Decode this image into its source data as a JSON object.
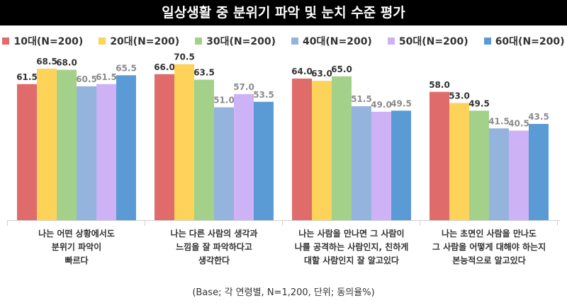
{
  "header": {
    "title": "일상생활 중 분위기 파악 및 눈치 수준 평가"
  },
  "footnote": "(Base; 각 연령별, N=1,200, 단위; 동의율%)",
  "chart_data": {
    "type": "bar",
    "title": "일상생활 중 분위기 파악 및 눈치 수준 평가",
    "ylim": [
      0,
      80
    ],
    "grid": false,
    "legend_position": "top",
    "categories": [
      [
        "나는 어떤 상황에서도",
        "분위기 파악이",
        "빠르다"
      ],
      [
        "나는 다른 사람의 생각과",
        "느낌을 잘 파악하다고",
        "생각한다"
      ],
      [
        "나는 사람을 만나면 그 사람이",
        "나를 공격하는 사람인지, 친하게",
        "대할 사람인지 잘 알고있다"
      ],
      [
        "나는 초면인 사람을 만나도",
        "그 사람을 어떻게 대해야 하는지",
        "본능적으로 알고있다"
      ]
    ],
    "series": [
      {
        "name": "10대(N=200)",
        "color": "#e06b6b",
        "label_color": "#333333",
        "values": [
          61.5,
          66.0,
          64.0,
          58.0
        ]
      },
      {
        "name": "20대(N=200)",
        "color": "#fdd35a",
        "label_color": "#333333",
        "values": [
          68.5,
          70.5,
          63.0,
          53.0
        ]
      },
      {
        "name": "30대(N=200)",
        "color": "#a3d18a",
        "label_color": "#333333",
        "values": [
          68.0,
          63.5,
          65.0,
          49.5
        ]
      },
      {
        "name": "40대(N=200)",
        "color": "#94b4dd",
        "label_color": "#8c8c8c",
        "values": [
          60.5,
          51.0,
          51.5,
          41.5
        ]
      },
      {
        "name": "50대(N=200)",
        "color": "#cdb3f5",
        "label_color": "#8c8c8c",
        "values": [
          61.5,
          57.0,
          49.0,
          40.5
        ]
      },
      {
        "name": "60대(N=200)",
        "color": "#5b9bd5",
        "label_color": "#8c8c8c",
        "values": [
          65.5,
          53.5,
          49.5,
          43.5
        ]
      }
    ]
  }
}
